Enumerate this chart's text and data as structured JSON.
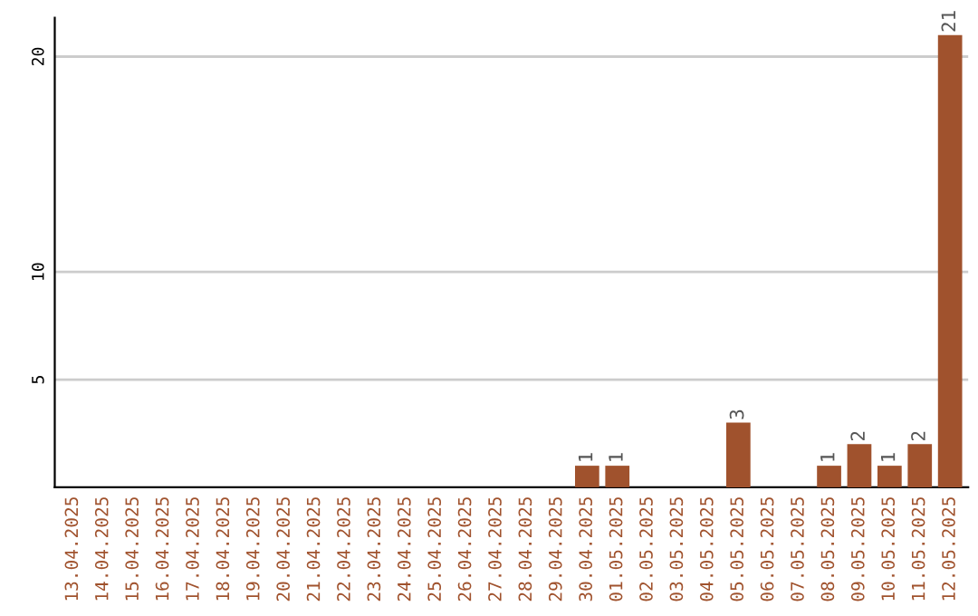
{
  "chart_data": {
    "type": "bar",
    "categories": [
      "13.04.2025",
      "14.04.2025",
      "15.04.2025",
      "16.04.2025",
      "17.04.2025",
      "18.04.2025",
      "19.04.2025",
      "20.04.2025",
      "21.04.2025",
      "22.04.2025",
      "23.04.2025",
      "24.04.2025",
      "25.04.2025",
      "26.04.2025",
      "27.04.2025",
      "28.04.2025",
      "29.04.2025",
      "30.04.2025",
      "01.05.2025",
      "02.05.2025",
      "03.05.2025",
      "04.05.2025",
      "05.05.2025",
      "06.05.2025",
      "07.05.2025",
      "08.05.2025",
      "09.05.2025",
      "10.05.2025",
      "11.05.2025",
      "12.05.2025"
    ],
    "values": [
      0,
      0,
      0,
      0,
      0,
      0,
      0,
      0,
      0,
      0,
      0,
      0,
      0,
      0,
      0,
      0,
      0,
      1,
      1,
      0,
      0,
      0,
      3,
      0,
      0,
      1,
      2,
      1,
      2,
      21
    ],
    "value_labels": [
      null,
      null,
      null,
      null,
      null,
      null,
      null,
      null,
      null,
      null,
      null,
      null,
      null,
      null,
      null,
      null,
      null,
      "1",
      "1",
      null,
      null,
      null,
      "3",
      null,
      null,
      "1",
      "2",
      "1",
      "2",
      "21"
    ],
    "color": "#a0522d",
    "ylim": [
      0,
      21.8
    ],
    "yticks": [
      5,
      10,
      20
    ],
    "grid": "y"
  }
}
